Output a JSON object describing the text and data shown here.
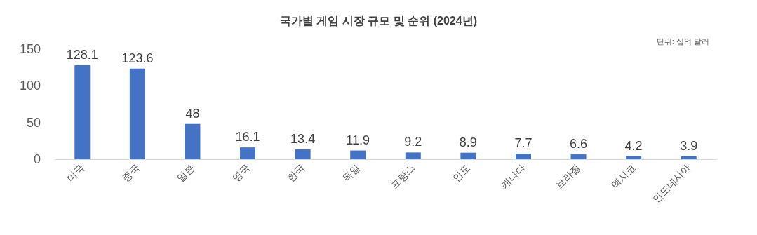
{
  "chart_data": {
    "type": "bar",
    "title": "국가별 게임 시장 규모 및 순위 (2024년)",
    "annotations": [
      "단위: 십억 달러"
    ],
    "categories": [
      "미국",
      "중국",
      "일본",
      "영국",
      "한국",
      "독일",
      "프랑스",
      "인도",
      "캐나다",
      "브라질",
      "멕시코",
      "인도네시아"
    ],
    "values": [
      128.1,
      123.6,
      48,
      16.1,
      13.4,
      11.9,
      9.2,
      8.9,
      7.7,
      6.6,
      4.2,
      3.9
    ],
    "color": "#4472c4",
    "ylim": [
      0,
      150
    ],
    "yticks": [
      0,
      50,
      100,
      150
    ],
    "grid": false,
    "data_labels": true
  }
}
